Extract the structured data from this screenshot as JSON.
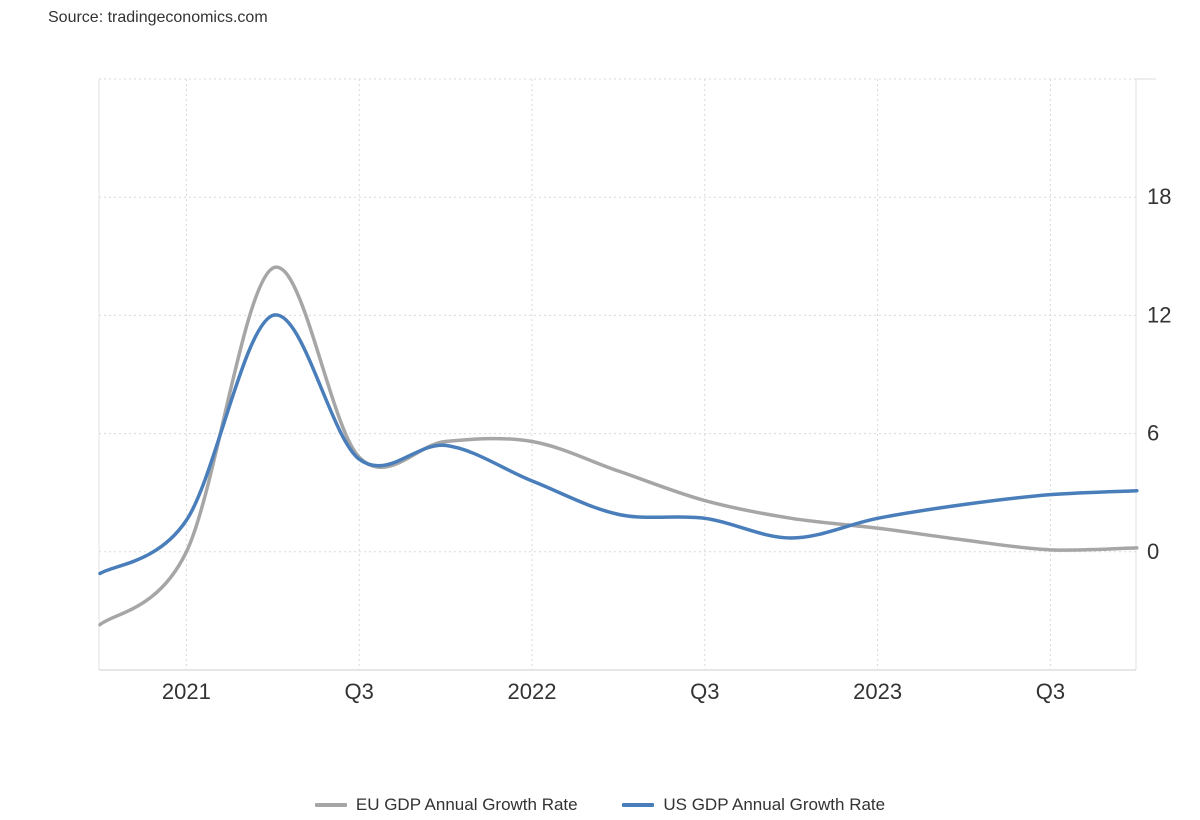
{
  "source": "Source: tradingeconomics.com",
  "chart_data": {
    "type": "line",
    "title": "",
    "xlabel": "",
    "ylabel": "",
    "x_quarters": [
      "2020 Q4",
      "2021 Q1",
      "2021 Q2",
      "2021 Q3",
      "2021 Q4",
      "2022 Q1",
      "2022 Q2",
      "2022 Q3",
      "2022 Q4",
      "2023 Q1",
      "2023 Q2",
      "2023 Q3",
      "2023 Q4"
    ],
    "x_ticks": [
      "2021",
      "Q3",
      "2022",
      "Q3",
      "2023",
      "Q3"
    ],
    "y_ticks": [
      "18",
      "12",
      "6",
      "0"
    ],
    "ylim": [
      -6,
      24
    ],
    "grid": true,
    "legend_position": "bottom-center",
    "y_axis_side": "right",
    "series": [
      {
        "name": "EU GDP Annual Growth Rate",
        "color": "#a6a6a6",
        "values": [
          -3.7,
          0.0,
          14.4,
          4.8,
          5.6,
          5.6,
          4.1,
          2.6,
          1.7,
          1.2,
          0.6,
          0.1,
          0.2
        ]
      },
      {
        "name": "US GDP Annual Growth Rate",
        "color": "#4a7ebb",
        "values": [
          -1.1,
          1.6,
          12.0,
          4.7,
          5.4,
          3.6,
          1.9,
          1.7,
          0.7,
          1.7,
          2.4,
          2.9,
          3.1
        ]
      }
    ]
  }
}
